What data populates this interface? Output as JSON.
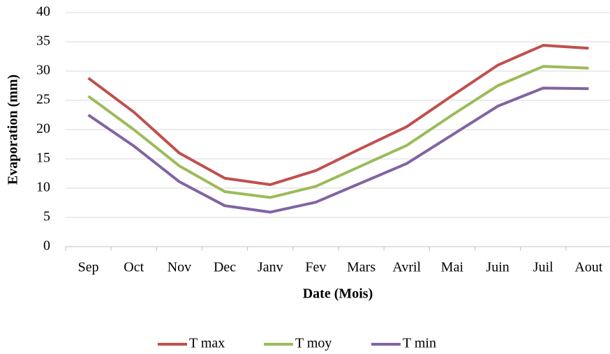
{
  "chart_data": {
    "type": "line",
    "x_label": "Date  (Mois)",
    "y_label": "Evaporation  (mm)",
    "categories": [
      "Sep",
      "Oct",
      "Nov",
      "Dec",
      "Janv",
      "Fev",
      "Mars",
      "Avril",
      "Mai",
      "Juin",
      "Juil",
      "Aout"
    ],
    "series": [
      {
        "name": "T max",
        "color": "#c0504d",
        "values": [
          28.8,
          23,
          16,
          11.7,
          10.6,
          13,
          16.8,
          20.5,
          25.8,
          31,
          34.4,
          33.9
        ]
      },
      {
        "name": "T moy",
        "color": "#9bbb59",
        "values": [
          25.7,
          20,
          13.8,
          9.4,
          8.4,
          10.3,
          13.8,
          17.3,
          22.5,
          27.5,
          30.8,
          30.5
        ]
      },
      {
        "name": "T min",
        "color": "#8064a2",
        "values": [
          22.5,
          17.2,
          11.1,
          7,
          5.9,
          7.6,
          10.9,
          14.2,
          19.1,
          24,
          27.1,
          27
        ]
      }
    ],
    "ylim": [
      0,
      40
    ],
    "yticks": [
      0,
      5,
      10,
      15,
      20,
      25,
      30,
      35,
      40
    ],
    "grid": true,
    "legend": "bottom"
  }
}
